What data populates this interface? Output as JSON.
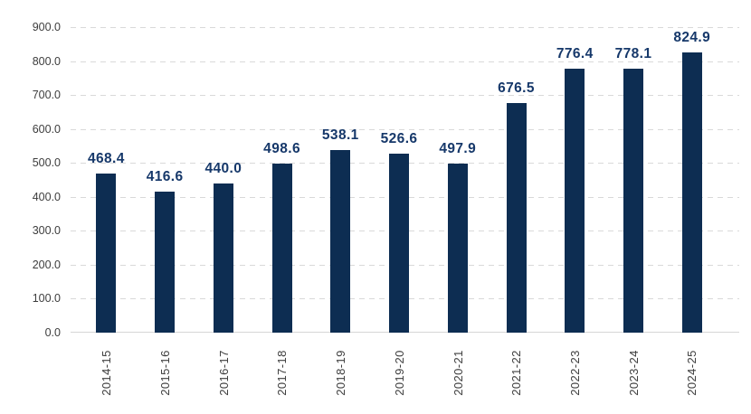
{
  "chart_data": {
    "type": "bar",
    "categories": [
      "2014-15",
      "2015-16",
      "2016-17",
      "2017-18",
      "2018-19",
      "2019-20",
      "2020-21",
      "2021-22",
      "2022-23",
      "2023-24",
      "2024-25"
    ],
    "values": [
      468.4,
      416.6,
      440.0,
      498.6,
      538.1,
      526.6,
      497.9,
      676.5,
      776.4,
      778.1,
      824.9
    ],
    "value_labels": [
      "468.4",
      "416.6",
      "440.0",
      "498.6",
      "538.1",
      "526.6",
      "497.9",
      "676.5",
      "776.4",
      "778.1",
      "824.9"
    ],
    "ylim": [
      0,
      900
    ],
    "y_ticks": [
      0,
      100,
      200,
      300,
      400,
      500,
      600,
      700,
      800,
      900
    ],
    "y_tick_decimals": 1,
    "grid": "horizontal-dashed",
    "legend_position": "none",
    "colors": {
      "bar": "#0d2d52",
      "value_label": "#16386a",
      "axis_text": "#3d3d3d",
      "gridline": "#d9d9d9",
      "axis_line": "#d6d6d6",
      "background": "#ffffff"
    }
  }
}
